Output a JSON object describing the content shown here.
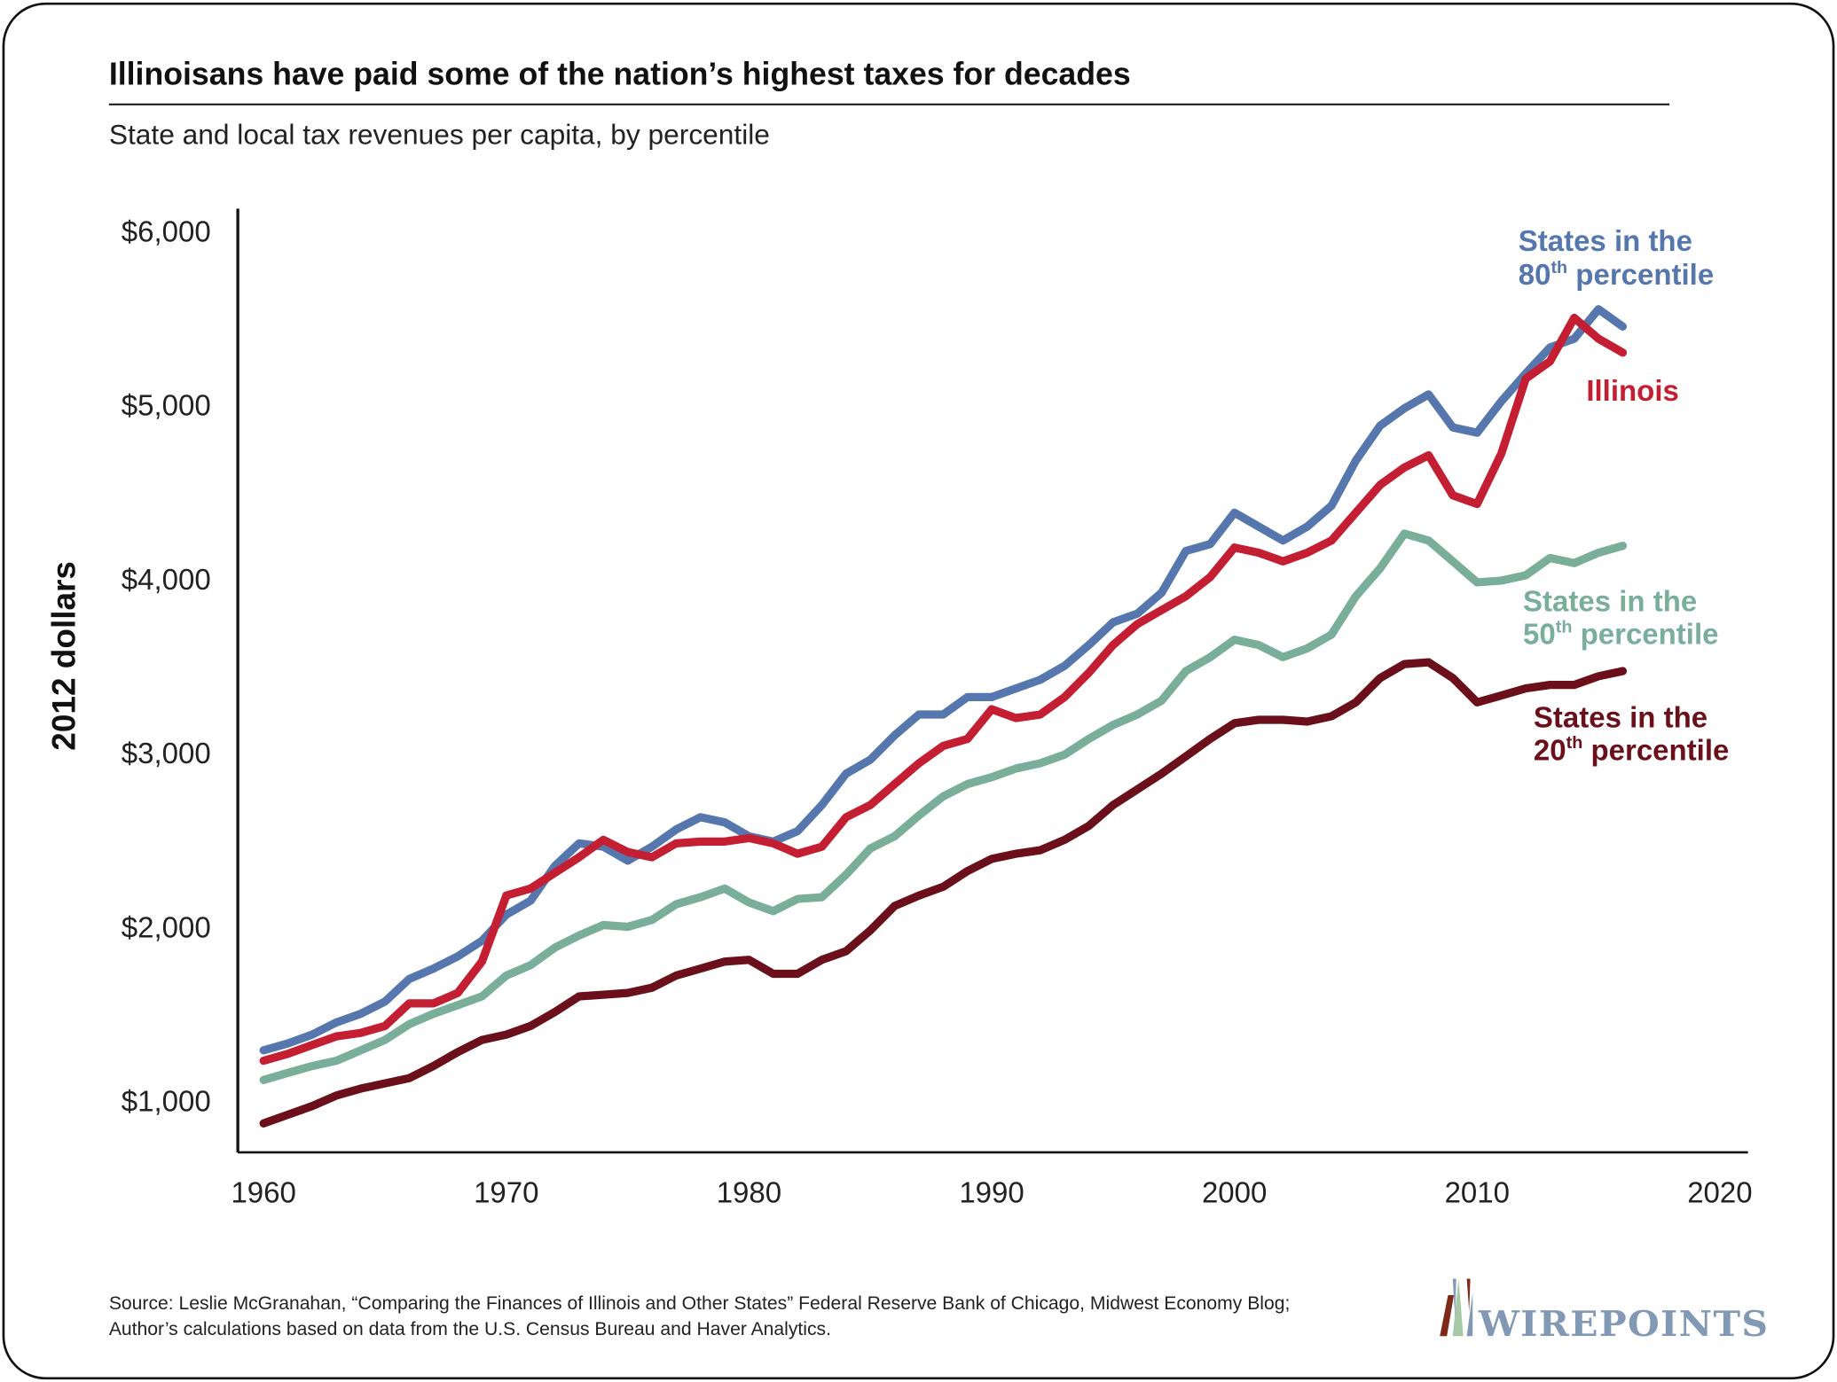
{
  "chart_data": {
    "type": "line",
    "title": "Illinoisans have paid some of the nation’s highest taxes for decades",
    "subtitle": "State and local tax revenues per capita, by percentile",
    "ylabel": "2012 dollars",
    "xlabel": "",
    "xlim": [
      1960,
      2020
    ],
    "ylim": [
      1000,
      6000
    ],
    "x_ticks": [
      "1960",
      "1970",
      "1980",
      "1990",
      "2000",
      "2010",
      "2020"
    ],
    "y_ticks": [
      "$1,000",
      "$2,000",
      "$3,000",
      "$4,000",
      "$5,000",
      "$6,000"
    ],
    "grid": false,
    "x": [
      1960,
      1961,
      1962,
      1963,
      1964,
      1965,
      1966,
      1967,
      1968,
      1969,
      1970,
      1971,
      1972,
      1973,
      1974,
      1975,
      1976,
      1977,
      1978,
      1979,
      1980,
      1981,
      1982,
      1983,
      1984,
      1985,
      1986,
      1987,
      1988,
      1989,
      1990,
      1991,
      1992,
      1993,
      1994,
      1995,
      1996,
      1997,
      1998,
      1999,
      2000,
      2001,
      2002,
      2003,
      2004,
      2005,
      2006,
      2007,
      2008,
      2009,
      2010,
      2011,
      2012,
      2013,
      2014,
      2015,
      2016
    ],
    "series": [
      {
        "name": "States in the 80th percentile",
        "label_line1": "States in the",
        "label_num": "80",
        "label_sup": "th",
        "label_rest": " percentile",
        "color": "#5577ad",
        "values": [
          1290,
          1330,
          1380,
          1450,
          1500,
          1570,
          1700,
          1760,
          1830,
          1920,
          2070,
          2150,
          2350,
          2480,
          2460,
          2380,
          2460,
          2560,
          2630,
          2600,
          2520,
          2490,
          2550,
          2700,
          2880,
          2960,
          3100,
          3220,
          3220,
          3320,
          3320,
          3370,
          3420,
          3500,
          3620,
          3750,
          3800,
          3920,
          4160,
          4200,
          4380,
          4300,
          4220,
          4300,
          4420,
          4680,
          4880,
          4980,
          5060,
          4870,
          4840,
          5020,
          5180,
          5330,
          5380,
          5550,
          5450
        ]
      },
      {
        "name": "Illinois",
        "label_line1": "Illinois",
        "color": "#c41e32",
        "values": [
          1230,
          1270,
          1320,
          1370,
          1390,
          1430,
          1560,
          1560,
          1620,
          1800,
          2180,
          2220,
          2310,
          2400,
          2500,
          2430,
          2400,
          2480,
          2490,
          2490,
          2510,
          2480,
          2420,
          2460,
          2630,
          2700,
          2820,
          2940,
          3040,
          3080,
          3250,
          3200,
          3220,
          3320,
          3460,
          3620,
          3740,
          3820,
          3900,
          4010,
          4180,
          4150,
          4100,
          4150,
          4220,
          4380,
          4540,
          4640,
          4710,
          4480,
          4430,
          4720,
          5150,
          5250,
          5500,
          5380,
          5300
        ]
      },
      {
        "name": "States in the 50th percentile",
        "label_line1": "States in the",
        "label_num": "50",
        "label_sup": "th",
        "label_rest": " percentile",
        "color": "#79ae9a",
        "values": [
          1120,
          1160,
          1200,
          1230,
          1290,
          1350,
          1440,
          1500,
          1550,
          1600,
          1720,
          1780,
          1880,
          1950,
          2010,
          2000,
          2040,
          2130,
          2170,
          2220,
          2140,
          2090,
          2160,
          2170,
          2300,
          2450,
          2520,
          2640,
          2750,
          2820,
          2860,
          2910,
          2940,
          2990,
          3080,
          3160,
          3220,
          3300,
          3470,
          3550,
          3650,
          3620,
          3550,
          3600,
          3680,
          3900,
          4060,
          4260,
          4220,
          4100,
          3980,
          3990,
          4020,
          4120,
          4090,
          4150,
          4190
        ]
      },
      {
        "name": "States in the 20th percentile",
        "label_line1": "States in the",
        "label_num": "20",
        "label_sup": "th",
        "label_rest": " percentile",
        "color": "#6b0f1a",
        "values": [
          870,
          920,
          970,
          1030,
          1070,
          1100,
          1130,
          1200,
          1280,
          1350,
          1380,
          1430,
          1510,
          1600,
          1610,
          1620,
          1650,
          1720,
          1760,
          1800,
          1810,
          1730,
          1730,
          1810,
          1860,
          1980,
          2120,
          2180,
          2230,
          2320,
          2390,
          2420,
          2440,
          2500,
          2580,
          2700,
          2790,
          2880,
          2980,
          3080,
          3170,
          3190,
          3190,
          3180,
          3210,
          3290,
          3430,
          3510,
          3520,
          3430,
          3290,
          3330,
          3370,
          3390,
          3390,
          3440,
          3470
        ]
      }
    ],
    "source_line1": "Source: Leslie McGranahan, “Comparing the Finances of Illinois and Other States” Federal Reserve Bank of Chicago, Midwest Economy Blog;",
    "source_line2": "Author’s calculations based on data from the U.S. Census Bureau and Haver Analytics.",
    "logo_text": "WIREPOINTS"
  }
}
